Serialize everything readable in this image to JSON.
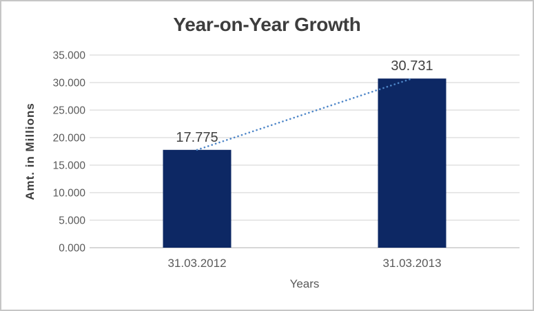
{
  "window": {
    "background_color": "#ffffff",
    "border_color": "#c6c6c6"
  },
  "chart_data": {
    "type": "bar",
    "title": "Year-on-Year Growth",
    "xlabel": "Years",
    "ylabel": "Amt. in Millions",
    "categories": [
      "31.03.2012",
      "31.03.2013"
    ],
    "values": [
      17.775,
      30.731
    ],
    "data_labels": [
      "17.775",
      "30.731"
    ],
    "ylim": [
      0,
      35
    ],
    "ytick_step": 5,
    "ytick_labels": [
      "0.000",
      "5.000",
      "10.000",
      "15.000",
      "20.000",
      "25.000",
      "30.000",
      "35.000"
    ],
    "grid": true,
    "legend": "none",
    "trendline": {
      "style": "dotted",
      "color": "#4e86c8",
      "from_value": 17.775,
      "to_value": 30.731
    },
    "colors": {
      "bar": "#0d2864",
      "gridline": "#d9d9d9",
      "axis_line": "#bfbfbf",
      "title_text": "#3d3d3d",
      "data_label_text": "#404040",
      "tick_text": "#595959"
    }
  }
}
